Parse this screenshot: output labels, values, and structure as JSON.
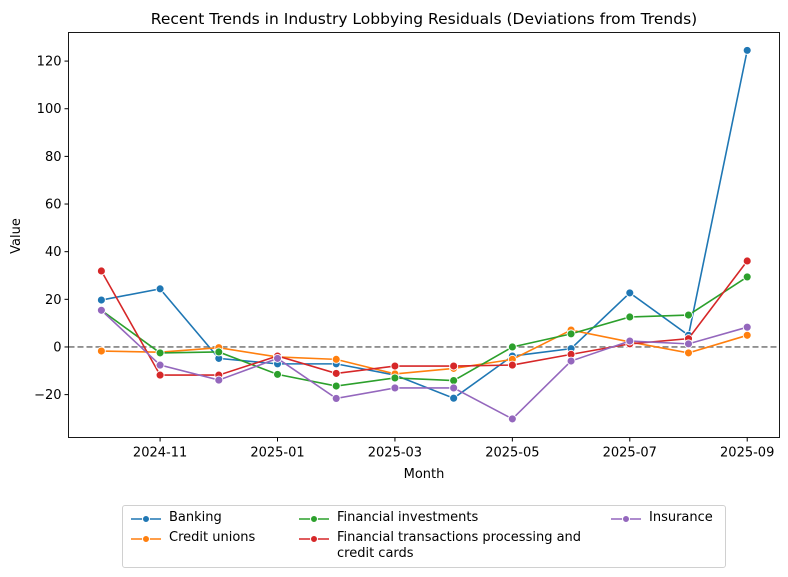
{
  "chart_data": {
    "type": "line",
    "title": "Recent Trends in Industry Lobbying Residuals (Deviations from Trends)",
    "xlabel": "Month",
    "ylabel": "Value",
    "x": [
      "2024-10",
      "2024-11",
      "2024-12",
      "2025-01",
      "2025-02",
      "2025-03",
      "2025-04",
      "2025-05",
      "2025-06",
      "2025-07",
      "2025-08",
      "2025-09"
    ],
    "xticks": [
      "2024-11",
      "2025-01",
      "2025-03",
      "2025-05",
      "2025-07",
      "2025-09"
    ],
    "yticks": [
      -20,
      0,
      20,
      40,
      60,
      80,
      100,
      120
    ],
    "ylim": [
      -38,
      132
    ],
    "reference_line": {
      "y": 0,
      "style": "dashed",
      "color": "#808080"
    },
    "grid": false,
    "legend_placement": "bottom (outside)",
    "series": [
      {
        "name": "Banking",
        "color": "#1f77b4",
        "values": [
          19.7,
          24.4,
          -4.8,
          -7.1,
          -7.1,
          -11.8,
          -21.5,
          -3.8,
          -0.7,
          22.7,
          4.9,
          124.5
        ]
      },
      {
        "name": "Credit unions",
        "color": "#ff7f0e",
        "values": [
          -1.7,
          -2.2,
          -0.3,
          -4.2,
          -5.2,
          -11.3,
          -9.0,
          -5.2,
          7.1,
          2.1,
          -2.5,
          4.9
        ]
      },
      {
        "name": "Financial investments",
        "color": "#2ca02c",
        "values": [
          15.4,
          -2.5,
          -2.1,
          -11.5,
          -16.4,
          -13.0,
          -14.1,
          0.0,
          5.5,
          12.6,
          13.4,
          29.4
        ]
      },
      {
        "name": "Financial transactions processing and credit cards",
        "color": "#d62728",
        "values": [
          31.9,
          -11.8,
          -11.8,
          -3.8,
          -11.1,
          -8.0,
          -8.0,
          -7.6,
          -3.1,
          1.3,
          3.5,
          36.1
        ]
      },
      {
        "name": "Insurance",
        "color": "#9467bd",
        "values": [
          15.4,
          -7.6,
          -13.9,
          -4.8,
          -21.6,
          -17.2,
          -17.2,
          -30.2,
          -5.9,
          2.5,
          1.3,
          8.3
        ]
      }
    ]
  },
  "legend": {
    "items": [
      {
        "label": "Banking"
      },
      {
        "label": "Credit unions"
      },
      {
        "label": "Financial investments"
      },
      {
        "label_line1": "Financial transactions processing and",
        "label_line2": "credit cards"
      },
      {
        "label": "Insurance"
      }
    ]
  }
}
